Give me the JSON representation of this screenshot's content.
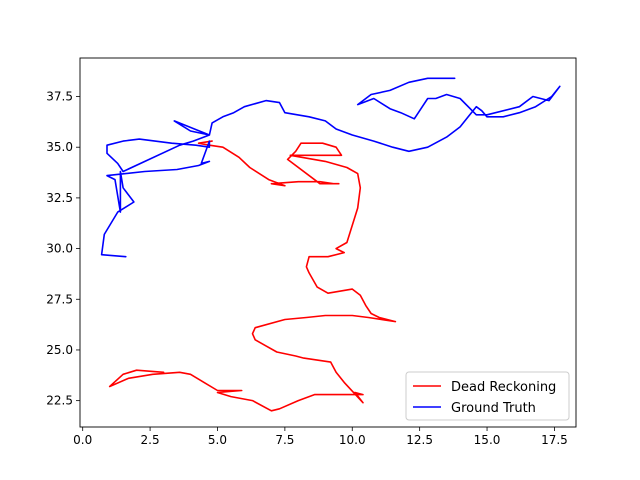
{
  "chart_data": {
    "type": "line",
    "title": "",
    "xlabel": "",
    "ylabel": "",
    "xlim": [
      -0.1,
      18.3
    ],
    "ylim": [
      21.2,
      39.4
    ],
    "xticks": [
      0.0,
      2.5,
      5.0,
      7.5,
      10.0,
      12.5,
      15.0,
      17.5
    ],
    "xtick_labels": [
      "0.0",
      "2.5",
      "5.0",
      "7.5",
      "10.0",
      "12.5",
      "15.0",
      "17.5"
    ],
    "yticks": [
      22.5,
      25.0,
      27.5,
      30.0,
      32.5,
      35.0,
      37.5
    ],
    "ytick_labels": [
      "22.5",
      "25.0",
      "27.5",
      "30.0",
      "32.5",
      "35.0",
      "37.5"
    ],
    "grid": false,
    "legend_position": "lower-right",
    "series": [
      {
        "name": "Dead Reckoning",
        "color": "#ff0000",
        "points": [
          [
            3.0,
            23.9
          ],
          [
            2.0,
            24.0
          ],
          [
            1.5,
            23.8
          ],
          [
            1.0,
            23.2
          ],
          [
            1.7,
            23.6
          ],
          [
            2.6,
            23.8
          ],
          [
            3.6,
            23.9
          ],
          [
            4.0,
            23.8
          ],
          [
            4.5,
            23.4
          ],
          [
            5.0,
            23.0
          ],
          [
            5.9,
            23.0
          ],
          [
            5.0,
            22.9
          ],
          [
            5.5,
            22.7
          ],
          [
            6.3,
            22.5
          ],
          [
            7.0,
            22.0
          ],
          [
            7.3,
            22.1
          ],
          [
            8.0,
            22.5
          ],
          [
            8.6,
            22.8
          ],
          [
            10.4,
            22.8
          ],
          [
            10.1,
            22.9
          ],
          [
            10.4,
            22.4
          ],
          [
            9.7,
            23.4
          ],
          [
            9.4,
            23.9
          ],
          [
            9.2,
            24.4
          ],
          [
            8.7,
            24.5
          ],
          [
            8.2,
            24.6
          ],
          [
            7.9,
            24.7
          ],
          [
            7.2,
            24.9
          ],
          [
            6.8,
            25.2
          ],
          [
            6.4,
            25.5
          ],
          [
            6.3,
            25.8
          ],
          [
            6.4,
            26.1
          ],
          [
            7.5,
            26.5
          ],
          [
            8.3,
            26.6
          ],
          [
            9.0,
            26.7
          ],
          [
            9.4,
            26.7
          ],
          [
            10.0,
            26.7
          ],
          [
            10.6,
            26.6
          ],
          [
            11.6,
            26.4
          ],
          [
            11.0,
            26.6
          ],
          [
            10.7,
            26.8
          ],
          [
            10.5,
            27.2
          ],
          [
            10.3,
            27.7
          ],
          [
            10.0,
            28.0
          ],
          [
            9.1,
            27.8
          ],
          [
            8.7,
            28.1
          ],
          [
            8.4,
            28.8
          ],
          [
            8.3,
            29.1
          ],
          [
            8.4,
            29.6
          ],
          [
            9.1,
            29.6
          ],
          [
            9.7,
            29.8
          ],
          [
            9.4,
            30.0
          ],
          [
            9.8,
            30.3
          ],
          [
            10.2,
            32.0
          ],
          [
            10.3,
            33.0
          ],
          [
            10.2,
            33.7
          ],
          [
            9.8,
            34.0
          ],
          [
            9.0,
            34.3
          ],
          [
            7.7,
            34.6
          ],
          [
            9.6,
            34.6
          ],
          [
            9.4,
            35.0
          ],
          [
            8.9,
            35.2
          ],
          [
            8.1,
            35.2
          ],
          [
            7.9,
            34.8
          ],
          [
            7.6,
            34.4
          ],
          [
            8.8,
            33.2
          ],
          [
            9.5,
            33.2
          ],
          [
            9.3,
            33.2
          ],
          [
            8.8,
            33.3
          ],
          [
            8.0,
            33.3
          ],
          [
            7.0,
            33.2
          ],
          [
            7.5,
            33.1
          ],
          [
            6.9,
            33.4
          ],
          [
            6.2,
            34.0
          ],
          [
            5.8,
            34.5
          ],
          [
            5.2,
            35.0
          ],
          [
            4.7,
            35.1
          ],
          [
            4.3,
            35.2
          ],
          [
            4.8,
            35.3
          ]
        ]
      },
      {
        "name": "Ground Truth",
        "color": "#0000ff",
        "points": [
          [
            1.6,
            29.6
          ],
          [
            0.7,
            29.7
          ],
          [
            0.8,
            30.7
          ],
          [
            1.3,
            31.8
          ],
          [
            1.9,
            32.3
          ],
          [
            1.5,
            33.0
          ],
          [
            1.4,
            33.8
          ],
          [
            1.4,
            31.8
          ],
          [
            1.2,
            33.4
          ],
          [
            0.9,
            33.6
          ],
          [
            2.3,
            33.8
          ],
          [
            3.5,
            33.9
          ],
          [
            4.3,
            34.1
          ],
          [
            4.7,
            34.3
          ],
          [
            4.4,
            34.2
          ],
          [
            4.7,
            35.3
          ],
          [
            4.7,
            35.0
          ],
          [
            4.2,
            35.1
          ],
          [
            3.3,
            35.2
          ],
          [
            2.1,
            35.4
          ],
          [
            1.5,
            35.3
          ],
          [
            0.9,
            35.1
          ],
          [
            0.9,
            34.7
          ],
          [
            1.3,
            34.2
          ],
          [
            1.5,
            33.8
          ],
          [
            3.6,
            35.1
          ],
          [
            4.1,
            35.3
          ],
          [
            4.7,
            35.6
          ],
          [
            4.0,
            35.8
          ],
          [
            3.4,
            36.3
          ],
          [
            4.7,
            35.6
          ],
          [
            4.8,
            36.2
          ],
          [
            5.2,
            36.5
          ],
          [
            5.6,
            36.7
          ],
          [
            6.0,
            37.0
          ],
          [
            6.8,
            37.3
          ],
          [
            7.3,
            37.2
          ],
          [
            7.5,
            36.7
          ],
          [
            8.4,
            36.5
          ],
          [
            9.0,
            36.3
          ],
          [
            9.4,
            35.9
          ],
          [
            10.0,
            35.6
          ],
          [
            10.8,
            35.3
          ],
          [
            11.5,
            35.0
          ],
          [
            12.1,
            34.8
          ],
          [
            12.8,
            35.0
          ],
          [
            13.5,
            35.5
          ],
          [
            14.0,
            36.0
          ],
          [
            14.3,
            36.5
          ],
          [
            14.6,
            37.0
          ],
          [
            14.8,
            36.8
          ],
          [
            15.0,
            36.5
          ],
          [
            15.6,
            36.5
          ],
          [
            16.2,
            36.7
          ],
          [
            16.8,
            37.0
          ],
          [
            17.4,
            37.5
          ],
          [
            17.7,
            38.0
          ],
          [
            17.3,
            37.3
          ],
          [
            16.7,
            37.5
          ],
          [
            16.2,
            37.0
          ],
          [
            15.0,
            36.6
          ],
          [
            14.6,
            36.6
          ],
          [
            14.0,
            37.4
          ],
          [
            13.5,
            37.6
          ],
          [
            13.1,
            37.4
          ],
          [
            12.8,
            37.4
          ],
          [
            12.6,
            37.0
          ],
          [
            12.3,
            36.4
          ],
          [
            11.8,
            36.7
          ],
          [
            11.4,
            36.9
          ],
          [
            10.8,
            37.4
          ],
          [
            10.2,
            37.1
          ],
          [
            10.7,
            37.6
          ],
          [
            11.4,
            37.8
          ],
          [
            12.1,
            38.2
          ],
          [
            12.8,
            38.4
          ],
          [
            13.8,
            38.4
          ],
          [
            13.2,
            38.4
          ]
        ]
      }
    ]
  }
}
